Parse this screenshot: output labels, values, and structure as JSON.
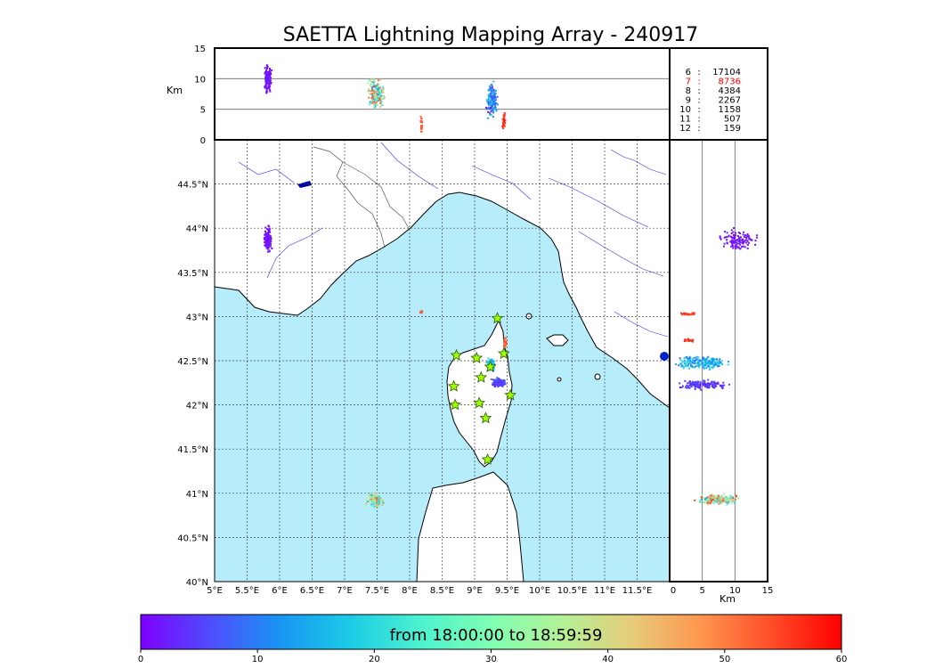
{
  "title": "SAETTA Lightning Mapping Array - 240917",
  "colorbar": {
    "label": "from 18:00:00 to 18:59:59",
    "ticks": [
      "0",
      "10",
      "20",
      "30",
      "40",
      "50",
      "60"
    ],
    "range": [
      0,
      60
    ],
    "colors": [
      "#7f00ff",
      "#4e4dfc",
      "#1996f3",
      "#1ccce6",
      "#4cf2ce",
      "#80feb3",
      "#b2f296",
      "#e6cc7a",
      "#ff964f",
      "#ff4d28",
      "#ff0000"
    ]
  },
  "chart_data": [
    {
      "type": "table",
      "name": "station_counts",
      "rows": [
        {
          "stations": "6",
          "sep": ":",
          "count": "17104",
          "color": "#000000"
        },
        {
          "stations": "7",
          "sep": ":",
          "count": "8736",
          "color": "#ff0000"
        },
        {
          "stations": "8",
          "sep": ":",
          "count": "4384",
          "color": "#000000"
        },
        {
          "stations": "9",
          "sep": ":",
          "count": "2267",
          "color": "#000000"
        },
        {
          "stations": "10",
          "sep": ":",
          "count": "1158",
          "color": "#000000"
        },
        {
          "stations": "11",
          "sep": ":",
          "count": "507",
          "color": "#000000"
        },
        {
          "stations": "12",
          "sep": ":",
          "count": "159",
          "color": "#000000"
        }
      ]
    },
    {
      "type": "scatter",
      "name": "map_view",
      "xlim": [
        5.0,
        12.0
      ],
      "ylim": [
        40.0,
        45.0
      ],
      "xticks": [
        "5°E",
        "5.5°E",
        "6°E",
        "6.5°E",
        "7°E",
        "7.5°E",
        "8°E",
        "8.5°E",
        "9°E",
        "9.5°E",
        "10°E",
        "10.5°E",
        "11°E",
        "11.5°E"
      ],
      "yticks": [
        "40°N",
        "40.5°N",
        "41°N",
        "41.5°N",
        "42°N",
        "42.5°N",
        "43°N",
        "43.5°N",
        "44°N",
        "44.5°N"
      ],
      "grid": true,
      "clusters": [
        {
          "lon": 5.82,
          "lat": 43.87,
          "dlon": 0.08,
          "dlat": 0.17,
          "n": 130,
          "t": [
            0,
            3
          ]
        },
        {
          "lon": 7.48,
          "lat": 40.92,
          "dlon": 0.18,
          "dlat": 0.1,
          "n": 110,
          "t": [
            12,
            56
          ]
        },
        {
          "lon": 9.25,
          "lat": 42.45,
          "dlon": 0.08,
          "dlat": 0.09,
          "n": 140,
          "t": [
            9,
            22
          ]
        },
        {
          "lon": 9.37,
          "lat": 42.25,
          "dlon": 0.13,
          "dlat": 0.07,
          "n": 160,
          "t": [
            1,
            8
          ]
        },
        {
          "lon": 9.47,
          "lat": 42.7,
          "dlon": 0.03,
          "dlat": 0.07,
          "n": 30,
          "t": [
            51,
            54
          ]
        },
        {
          "lon": 8.18,
          "lat": 43.05,
          "dlon": 0.02,
          "dlat": 0.02,
          "n": 12,
          "t": [
            52,
            54
          ]
        }
      ],
      "stations": [
        {
          "lon": 9.35,
          "lat": 42.98
        },
        {
          "lon": 8.72,
          "lat": 42.56
        },
        {
          "lon": 9.03,
          "lat": 42.53
        },
        {
          "lon": 9.45,
          "lat": 42.58
        },
        {
          "lon": 9.24,
          "lat": 42.43
        },
        {
          "lon": 9.1,
          "lat": 42.31
        },
        {
          "lon": 8.68,
          "lat": 42.21
        },
        {
          "lon": 9.55,
          "lat": 42.11
        },
        {
          "lon": 8.7,
          "lat": 42.0
        },
        {
          "lon": 9.07,
          "lat": 42.02
        },
        {
          "lon": 9.17,
          "lat": 41.85
        },
        {
          "lon": 9.2,
          "lat": 41.38
        }
      ]
    },
    {
      "type": "scatter",
      "name": "lon_altitude",
      "xlim": [
        5.0,
        12.0
      ],
      "ylim": [
        0,
        15
      ],
      "ylabel": "Km",
      "yticks": [
        "0",
        "5",
        "10",
        "15"
      ],
      "clusters": [
        {
          "lon": 5.82,
          "alt": 10.0,
          "dlon": 0.07,
          "dalt": 3.2,
          "n": 120,
          "t": [
            0,
            3
          ]
        },
        {
          "lon": 7.5,
          "alt": 7.5,
          "dlon": 0.18,
          "dalt": 3.0,
          "n": 170,
          "t": [
            12,
            56
          ]
        },
        {
          "lon": 8.18,
          "alt": 2.5,
          "dlon": 0.02,
          "dalt": 2.0,
          "n": 20,
          "t": [
            52,
            54
          ]
        },
        {
          "lon": 9.27,
          "alt": 6.5,
          "dlon": 0.1,
          "dalt": 3.4,
          "n": 200,
          "t": [
            1,
            22
          ]
        },
        {
          "lon": 9.45,
          "alt": 3.0,
          "dlon": 0.03,
          "dalt": 1.8,
          "n": 25,
          "t": [
            55,
            58
          ]
        }
      ]
    },
    {
      "type": "scatter",
      "name": "altitude_lat",
      "xlim": [
        0,
        15
      ],
      "ylim": [
        40.0,
        45.0
      ],
      "xlabel": "Km",
      "xticks": [
        "0",
        "5",
        "10",
        "15"
      ],
      "clusters": [
        {
          "alt": 10.5,
          "lat": 43.87,
          "dlat": 0.17,
          "dalt": 3.5,
          "n": 120,
          "t": [
            0,
            3
          ]
        },
        {
          "alt": 2.8,
          "lat": 43.03,
          "dlat": 0.02,
          "dalt": 1.8,
          "n": 25,
          "t": [
            54,
            57
          ]
        },
        {
          "alt": 2.8,
          "lat": 42.73,
          "dlat": 0.02,
          "dalt": 1.5,
          "n": 20,
          "t": [
            55,
            58
          ]
        },
        {
          "alt": 5.0,
          "lat": 42.48,
          "dlat": 0.1,
          "dalt": 5.0,
          "n": 200,
          "t": [
            8,
            22
          ]
        },
        {
          "alt": 5.0,
          "lat": 42.23,
          "dlat": 0.07,
          "dalt": 4.5,
          "n": 160,
          "t": [
            1,
            8
          ]
        },
        {
          "alt": 7.5,
          "lat": 40.93,
          "dlat": 0.07,
          "dalt": 4.2,
          "n": 170,
          "t": [
            12,
            56
          ]
        }
      ]
    }
  ]
}
